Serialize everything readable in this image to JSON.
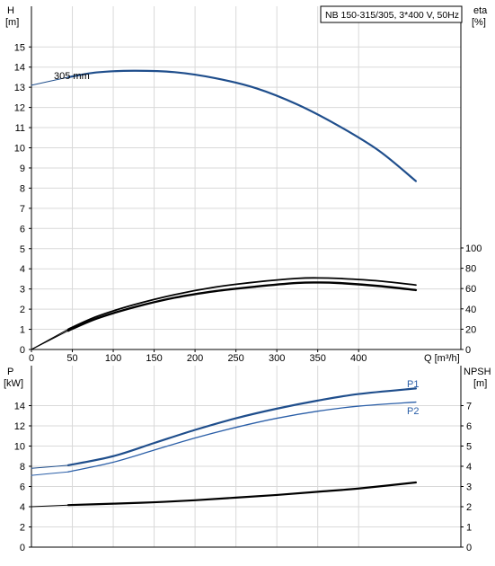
{
  "chart_data": [
    {
      "type": "line",
      "title": "NB 150-315/305, 3*400 V, 50Hz",
      "ylabel_left": "H",
      "ylabel_left_unit": "[m]",
      "ylabel_right": "eta",
      "ylabel_right_unit": "[%]",
      "xlabel": "Q [m³/h]",
      "xlim": [
        0,
        525
      ],
      "ylim_left": [
        0,
        16
      ],
      "ylim_right": [
        0,
        100
      ],
      "x_ticks": [
        "0",
        "50",
        "100",
        "150",
        "200",
        "250",
        "300",
        "350",
        "400"
      ],
      "y_ticks_left": [
        "0",
        "1",
        "2",
        "3",
        "4",
        "5",
        "6",
        "7",
        "8",
        "9",
        "10",
        "11",
        "12",
        "13",
        "14",
        "15"
      ],
      "y_ticks_right": [
        "0",
        "20",
        "40",
        "60",
        "80",
        "100"
      ],
      "grid": true,
      "series": [
        {
          "name": "305 mm",
          "axis": "left",
          "extension": [
            [
              0,
              13.1
            ],
            [
              45,
              13.5
            ]
          ],
          "points": [
            [
              45,
              13.5
            ],
            [
              80,
              13.74
            ],
            [
              125,
              13.82
            ],
            [
              175,
              13.75
            ],
            [
              225,
              13.45
            ],
            [
              275,
              12.95
            ],
            [
              325,
              12.15
            ],
            [
              375,
              11.1
            ],
            [
              425,
              9.85
            ],
            [
              470,
              8.35
            ]
          ]
        },
        {
          "axis": "right",
          "extension": [
            [
              0,
              0
            ],
            [
              45,
              20
            ]
          ],
          "points": [
            [
              45,
              20
            ],
            [
              80,
              32.5
            ],
            [
              125,
              44
            ],
            [
              175,
              54
            ],
            [
              225,
              61.5
            ],
            [
              275,
              66.5
            ],
            [
              325,
              70
            ],
            [
              350,
              70.5
            ],
            [
              375,
              70
            ],
            [
              425,
              67.5
            ],
            [
              470,
              63.5
            ]
          ]
        },
        {
          "axis": "right",
          "extension": [
            [
              0,
              0
            ],
            [
              45,
              18.5
            ]
          ],
          "points": [
            [
              45,
              18.5
            ],
            [
              80,
              30.5
            ],
            [
              125,
              41.5
            ],
            [
              175,
              51
            ],
            [
              225,
              57.5
            ],
            [
              275,
              62
            ],
            [
              325,
              65.5
            ],
            [
              350,
              66
            ],
            [
              375,
              65.5
            ],
            [
              425,
              62.5
            ],
            [
              470,
              58.5
            ]
          ]
        }
      ]
    },
    {
      "type": "line",
      "ylabel_left": "P",
      "ylabel_left_unit": "[kW]",
      "ylabel_right": "NPSH",
      "ylabel_right_unit": "[m]",
      "xlim": [
        0,
        525
      ],
      "ylim_left": [
        0,
        16
      ],
      "ylim_right": [
        0,
        8
      ],
      "y_ticks_left": [
        "0",
        "2",
        "4",
        "6",
        "8",
        "10",
        "12",
        "14"
      ],
      "y_ticks_right": [
        "0",
        "1",
        "2",
        "3",
        "4",
        "5",
        "6",
        "7"
      ],
      "grid": true,
      "series": [
        {
          "name": "P1",
          "axis": "left",
          "extension": [
            [
              0,
              7.8
            ],
            [
              45,
              8.1
            ]
          ],
          "points": [
            [
              45,
              8.1
            ],
            [
              100,
              9.0
            ],
            [
              150,
              10.3
            ],
            [
              200,
              11.6
            ],
            [
              250,
              12.75
            ],
            [
              300,
              13.7
            ],
            [
              350,
              14.5
            ],
            [
              400,
              15.15
            ],
            [
              470,
              15.7
            ]
          ]
        },
        {
          "name": "P2",
          "axis": "left",
          "extension": [
            [
              0,
              7.1
            ],
            [
              45,
              7.45
            ]
          ],
          "points": [
            [
              45,
              7.45
            ],
            [
              100,
              8.4
            ],
            [
              150,
              9.6
            ],
            [
              200,
              10.8
            ],
            [
              250,
              11.85
            ],
            [
              300,
              12.75
            ],
            [
              350,
              13.45
            ],
            [
              400,
              13.95
            ],
            [
              470,
              14.35
            ]
          ]
        },
        {
          "axis": "right",
          "extension": [
            [
              0,
              2.0
            ],
            [
              45,
              2.08
            ]
          ],
          "points": [
            [
              45,
              2.08
            ],
            [
              100,
              2.15
            ],
            [
              150,
              2.22
            ],
            [
              200,
              2.32
            ],
            [
              250,
              2.45
            ],
            [
              300,
              2.58
            ],
            [
              350,
              2.74
            ],
            [
              400,
              2.9
            ],
            [
              470,
              3.2
            ]
          ]
        }
      ]
    }
  ],
  "colors": {
    "head": "#1f4e8c",
    "eta": "#000000",
    "p1": "#1f4e8c",
    "p2": "#2b5fa8",
    "npsh": "#000000",
    "grid": "#d9d9d9",
    "axis": "#000000",
    "text": "#000000",
    "series_label": "#2b5fa8"
  }
}
